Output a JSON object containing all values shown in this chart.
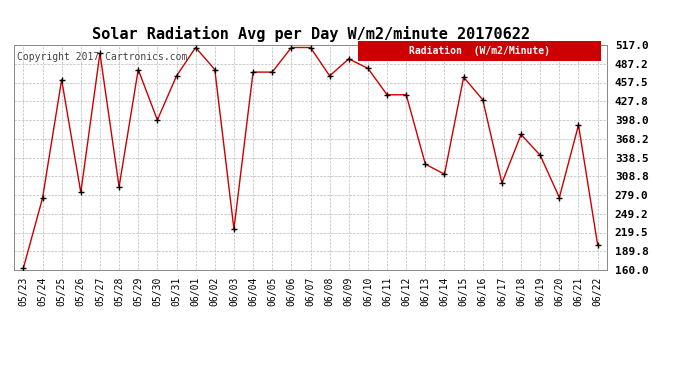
{
  "title": "Solar Radiation Avg per Day W/m2/minute 20170622",
  "copyright": "Copyright 2017 Cartronics.com",
  "legend_label": "Radiation  (W/m2/Minute)",
  "dates": [
    "05/23",
    "05/24",
    "05/25",
    "05/26",
    "05/27",
    "05/28",
    "05/29",
    "05/30",
    "05/31",
    "06/01",
    "06/02",
    "06/03",
    "06/04",
    "06/05",
    "06/06",
    "06/07",
    "06/08",
    "06/09",
    "06/10",
    "06/11",
    "06/12",
    "06/13",
    "06/14",
    "06/15",
    "06/16",
    "06/17",
    "06/18",
    "06/19",
    "06/20",
    "06/21",
    "06/22"
  ],
  "values": [
    163.0,
    274.0,
    462.0,
    283.0,
    504.0,
    292.0,
    478.0,
    398.0,
    468.0,
    513.0,
    478.0,
    225.0,
    474.0,
    474.0,
    513.0,
    513.0,
    468.0,
    495.0,
    480.0,
    438.0,
    438.0,
    328.0,
    312.0,
    466.0,
    430.0,
    298.0,
    375.0,
    342.0,
    275.0,
    390.0,
    200.0
  ],
  "ylim": [
    160.0,
    517.0
  ],
  "yticks": [
    160.0,
    189.8,
    219.5,
    249.2,
    279.0,
    308.8,
    338.5,
    368.2,
    398.0,
    427.8,
    457.5,
    487.2,
    517.0
  ],
  "line_color": "#cc0000",
  "marker_color": "#000000",
  "bg_color": "#ffffff",
  "grid_color": "#bbbbbb",
  "title_fontsize": 11,
  "copyright_fontsize": 7,
  "tick_fontsize": 7,
  "legend_bg_color": "#cc0000",
  "legend_text_color": "#ffffff",
  "legend_fontsize": 7
}
